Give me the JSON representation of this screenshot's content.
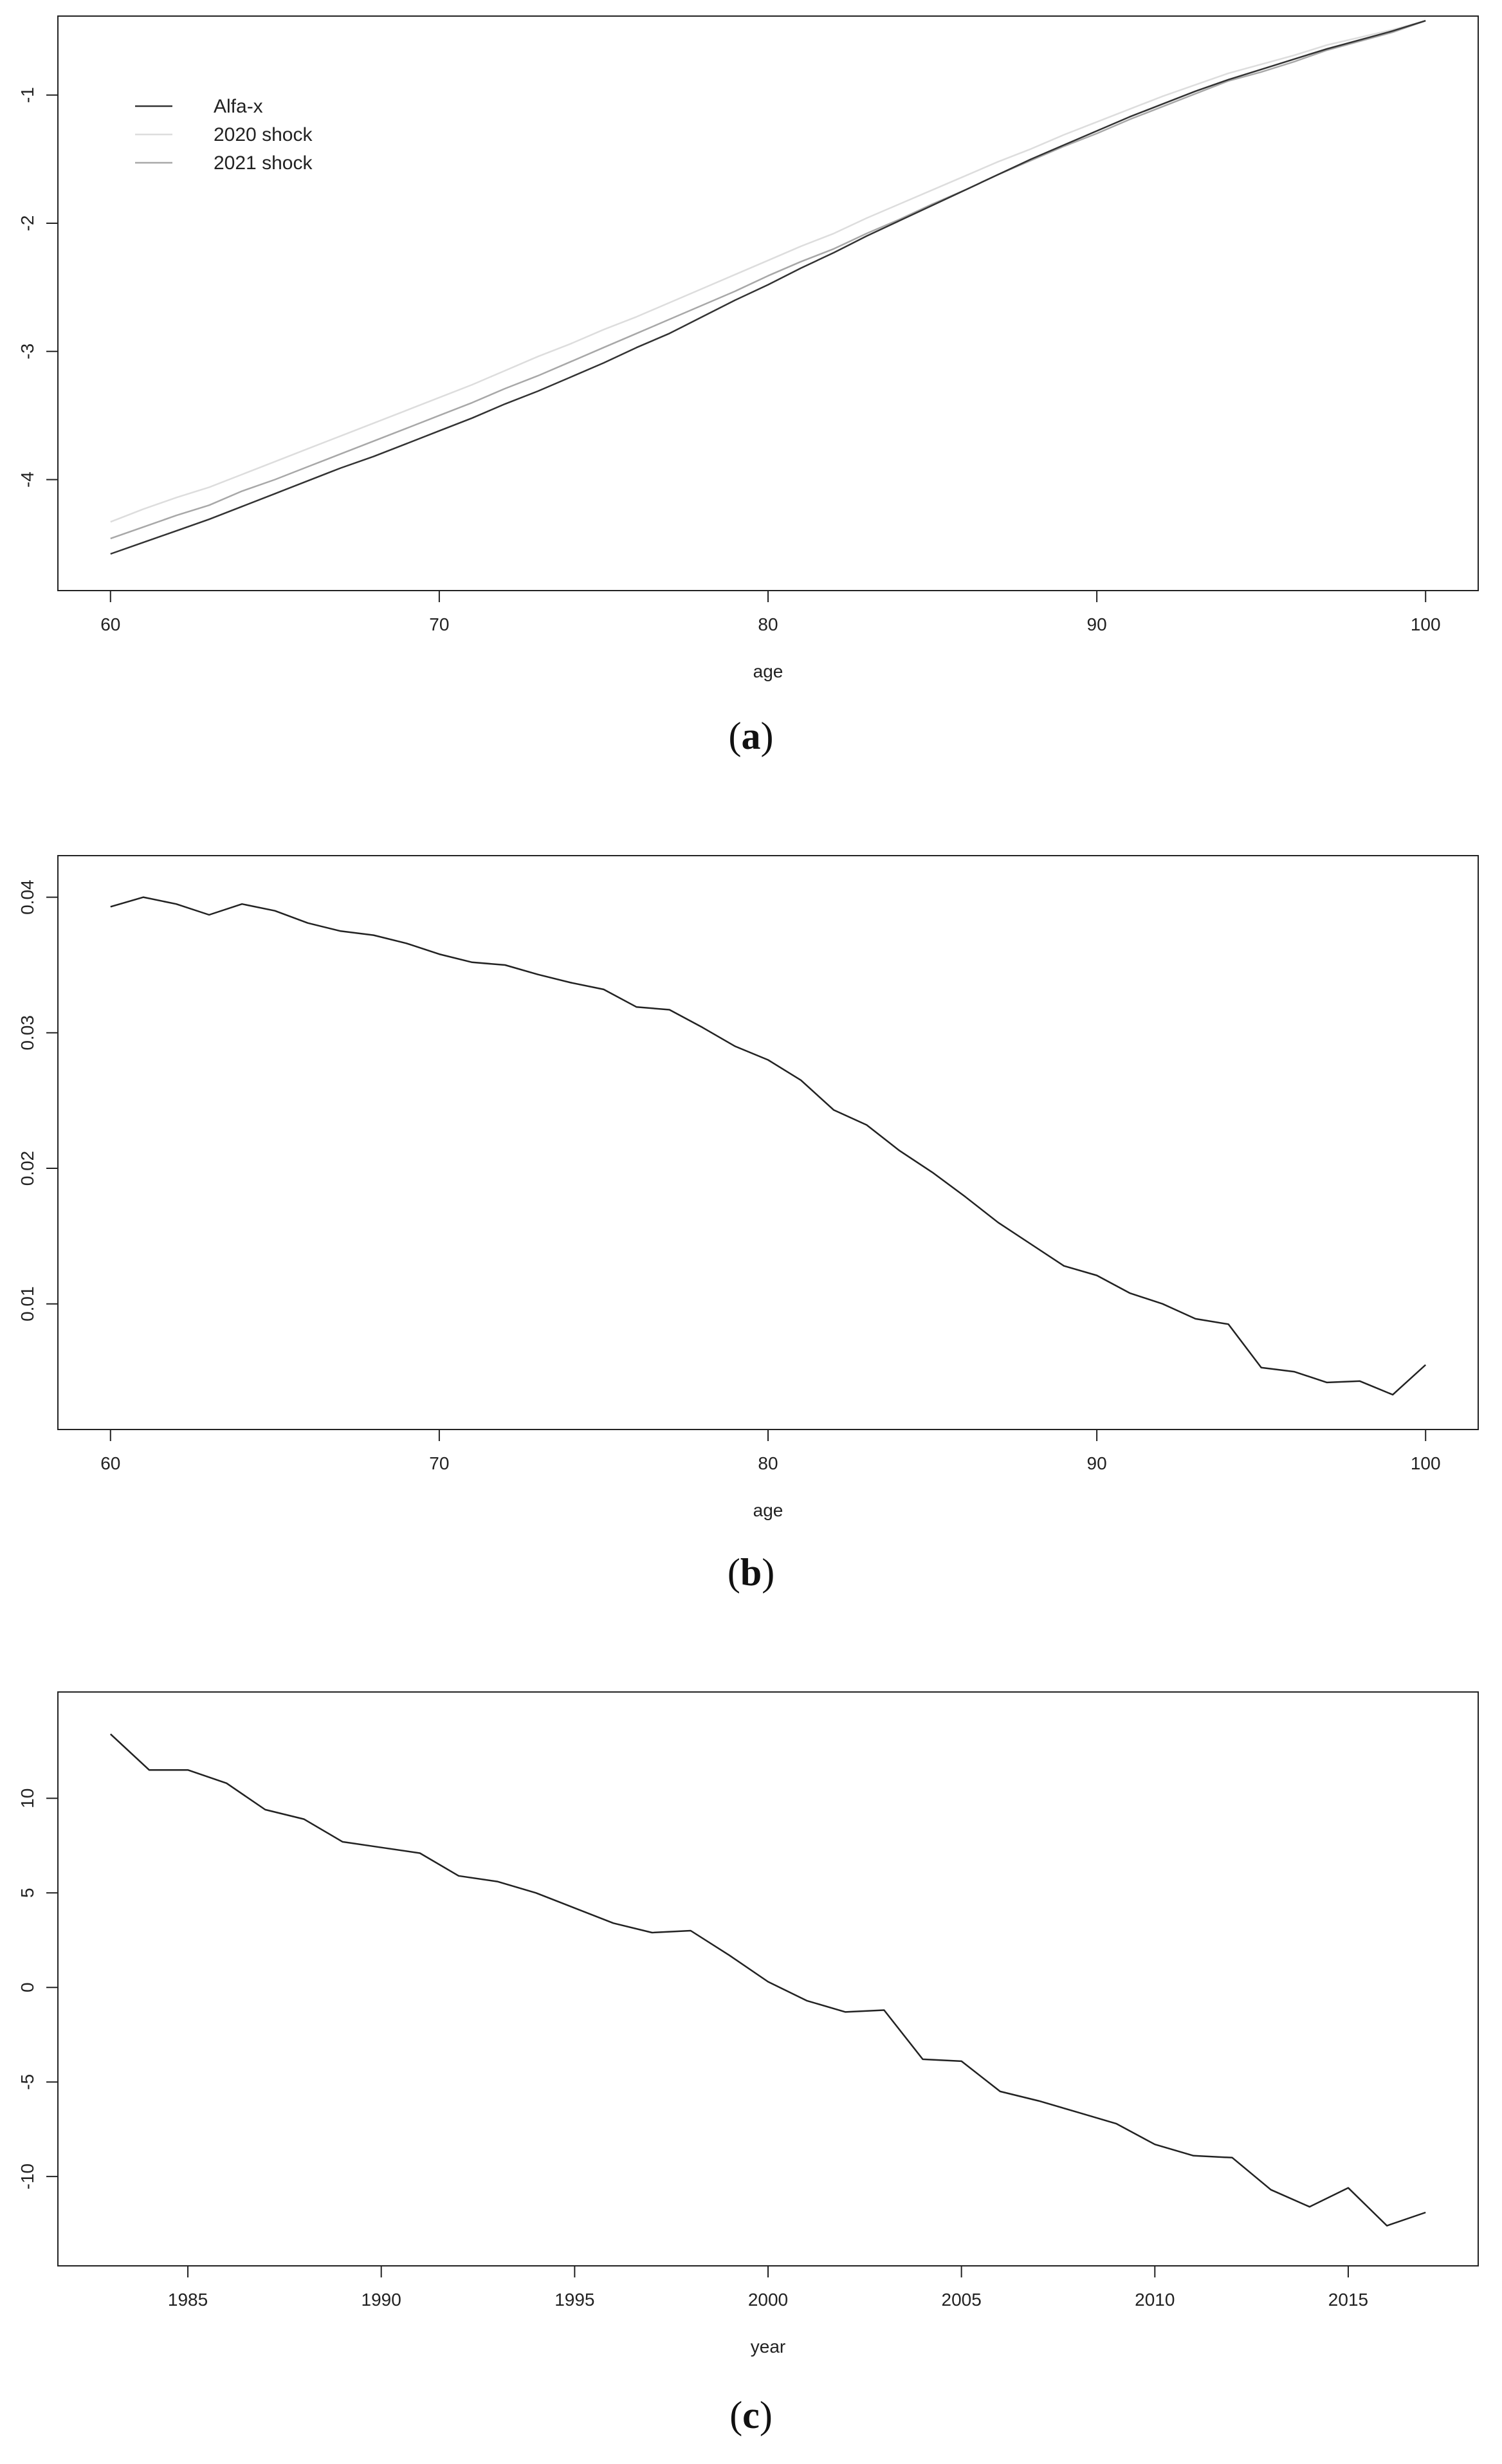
{
  "chart_data": [
    {
      "type": "line",
      "panel_label": "a",
      "xlabel": "age",
      "ylabel": "",
      "xlim": [
        60,
        100
      ],
      "ylim": [
        -4.7,
        -0.55
      ],
      "x_ticks": [
        60,
        70,
        80,
        90,
        100
      ],
      "y_ticks": [
        -4,
        -3,
        -2,
        -1
      ],
      "grid": false,
      "legend": "top-left",
      "x": [
        60,
        61,
        62,
        63,
        64,
        65,
        66,
        67,
        68,
        69,
        70,
        71,
        72,
        73,
        74,
        75,
        76,
        77,
        78,
        79,
        80,
        81,
        82,
        83,
        84,
        85,
        86,
        87,
        88,
        89,
        90,
        91,
        92,
        93,
        94,
        95,
        96,
        97,
        98,
        99,
        100
      ],
      "series": [
        {
          "name": "Alfa-x",
          "color": "#333333",
          "values": [
            -4.58,
            -4.49,
            -4.4,
            -4.31,
            -4.21,
            -4.11,
            -4.01,
            -3.91,
            -3.82,
            -3.72,
            -3.62,
            -3.52,
            -3.41,
            -3.31,
            -3.2,
            -3.09,
            -2.97,
            -2.86,
            -2.73,
            -2.6,
            -2.48,
            -2.35,
            -2.23,
            -2.1,
            -1.98,
            -1.86,
            -1.74,
            -1.62,
            -1.5,
            -1.39,
            -1.28,
            -1.17,
            -1.07,
            -0.97,
            -0.88,
            -0.8,
            -0.72,
            -0.64,
            -0.57,
            -0.5,
            -0.42
          ]
        },
        {
          "name": "2020 shock",
          "color": "#dddddd",
          "values": [
            -4.33,
            -4.23,
            -4.14,
            -4.06,
            -3.96,
            -3.86,
            -3.76,
            -3.66,
            -3.56,
            -3.46,
            -3.36,
            -3.26,
            -3.15,
            -3.04,
            -2.94,
            -2.83,
            -2.73,
            -2.62,
            -2.51,
            -2.4,
            -2.29,
            -2.18,
            -2.08,
            -1.96,
            -1.85,
            -1.74,
            -1.63,
            -1.52,
            -1.42,
            -1.31,
            -1.21,
            -1.11,
            -1.01,
            -0.92,
            -0.83,
            -0.76,
            -0.69,
            -0.61,
            -0.55,
            -0.49,
            -0.42
          ]
        },
        {
          "name": "2021 shock",
          "color": "#a8a8a8",
          "values": [
            -4.46,
            -4.37,
            -4.28,
            -4.2,
            -4.09,
            -4.0,
            -3.9,
            -3.8,
            -3.7,
            -3.6,
            -3.5,
            -3.4,
            -3.29,
            -3.19,
            -3.08,
            -2.97,
            -2.86,
            -2.75,
            -2.64,
            -2.53,
            -2.41,
            -2.3,
            -2.2,
            -2.08,
            -1.97,
            -1.85,
            -1.74,
            -1.62,
            -1.51,
            -1.4,
            -1.3,
            -1.19,
            -1.09,
            -0.99,
            -0.89,
            -0.82,
            -0.74,
            -0.65,
            -0.58,
            -0.51,
            -0.42
          ]
        }
      ]
    },
    {
      "type": "line",
      "panel_label": "b",
      "xlabel": "age",
      "ylabel": "",
      "xlim": [
        60,
        100
      ],
      "ylim": [
        0.0023,
        0.0415
      ],
      "x_ticks": [
        60,
        70,
        80,
        90,
        100
      ],
      "y_ticks": [
        0.01,
        0.02,
        0.03,
        0.04
      ],
      "y_tick_labels": [
        "0.01",
        "0.02",
        "0.03",
        "0.04"
      ],
      "grid": false,
      "x": [
        60,
        61,
        62,
        63,
        64,
        65,
        66,
        67,
        68,
        69,
        70,
        71,
        72,
        73,
        74,
        75,
        76,
        77,
        78,
        79,
        80,
        81,
        82,
        83,
        84,
        85,
        86,
        87,
        88,
        89,
        90,
        91,
        92,
        93,
        94,
        95,
        96,
        97,
        98,
        99,
        100
      ],
      "series": [
        {
          "color": "#222222",
          "values": [
            0.0393,
            0.04,
            0.0395,
            0.0387,
            0.0395,
            0.039,
            0.0381,
            0.0375,
            0.0372,
            0.0366,
            0.0358,
            0.0352,
            0.035,
            0.0343,
            0.0337,
            0.0332,
            0.0319,
            0.0317,
            0.0304,
            0.029,
            0.028,
            0.0265,
            0.0243,
            0.0232,
            0.0213,
            0.0197,
            0.0179,
            0.016,
            0.0144,
            0.0128,
            0.0121,
            0.0108,
            0.01,
            0.0089,
            0.0085,
            0.0053,
            0.005,
            0.0042,
            0.0043,
            0.0033,
            0.0055
          ]
        }
      ]
    },
    {
      "type": "line",
      "panel_label": "c",
      "xlabel": "year",
      "ylabel": "",
      "xlim": [
        1983,
        2017
      ],
      "ylim": [
        -13.6,
        14.5
      ],
      "x_ticks": [
        1985,
        1990,
        1995,
        2000,
        2005,
        2010,
        2015
      ],
      "y_ticks": [
        -10,
        -5,
        0,
        5,
        10
      ],
      "grid": false,
      "x": [
        1983,
        1984,
        1985,
        1986,
        1987,
        1988,
        1989,
        1990,
        1991,
        1992,
        1993,
        1994,
        1995,
        1996,
        1997,
        1998,
        1999,
        2000,
        2001,
        2002,
        2003,
        2004,
        2005,
        2006,
        2007,
        2008,
        2009,
        2010,
        2011,
        2012,
        2013,
        2014,
        2015,
        2016,
        2017
      ],
      "series": [
        {
          "color": "#222222",
          "values": [
            13.4,
            11.5,
            11.5,
            10.8,
            9.4,
            8.9,
            7.7,
            7.4,
            7.1,
            5.9,
            5.6,
            5.0,
            4.2,
            3.4,
            2.9,
            3.0,
            1.7,
            0.3,
            -0.7,
            -1.3,
            -1.2,
            -3.8,
            -3.9,
            -5.5,
            -6.0,
            -6.6,
            -7.2,
            -8.3,
            -8.9,
            -9.0,
            -10.7,
            -11.6,
            -10.6,
            -12.6,
            -11.9
          ]
        }
      ]
    }
  ]
}
